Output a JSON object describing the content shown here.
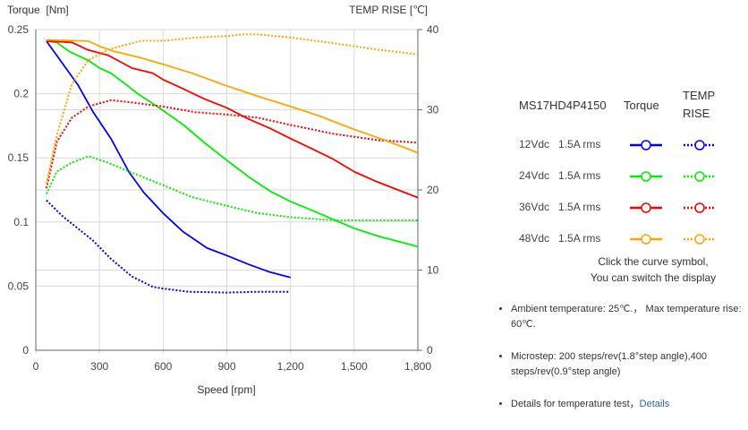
{
  "chart_data": {
    "type": "line",
    "xlabel": "Speed [rpm]",
    "ylabel": "Torque  [Nm]",
    "y2label": "TEMP RISE [℃]",
    "xlim": [
      0,
      1800
    ],
    "ylim": [
      0,
      0.25
    ],
    "y2lim": [
      0,
      40
    ],
    "grid": true,
    "x_ticks": [
      "0",
      "300",
      "600",
      "900",
      "1,200",
      "1,500",
      "1,800"
    ],
    "x_tick_values": [
      0,
      300,
      600,
      900,
      1200,
      1500,
      1800
    ],
    "y_ticks": [
      "0",
      "0.05",
      "0.1",
      "0.15",
      "0.2",
      "0.25"
    ],
    "y_tick_values": [
      0,
      0.05,
      0.1,
      0.15,
      0.2,
      0.25
    ],
    "y2_ticks": [
      "0",
      "10",
      "20",
      "30",
      "40"
    ],
    "y2_tick_values": [
      0,
      10,
      20,
      30,
      40
    ],
    "series": [
      {
        "name": "12Vdc 1.5A rms Torque",
        "axis": "left",
        "style": "solid",
        "color": "#0000ff",
        "x": [
          50,
          198,
          269,
          354,
          439,
          509,
          599,
          693,
          807,
          901,
          1005,
          1104,
          1200
        ],
        "y": [
          0.241,
          0.207,
          0.186,
          0.165,
          0.139,
          0.123,
          0.107,
          0.0925,
          0.0797,
          0.0738,
          0.0668,
          0.0609,
          0.0567
        ]
      },
      {
        "name": "12Vdc 1.5A rms TEMP RISE",
        "axis": "right",
        "style": "dotted",
        "color": "#0000ff",
        "x": [
          50,
          127,
          269,
          354,
          453,
          552,
          599,
          722,
          901,
          1047,
          1196
        ],
        "y": [
          18.7,
          16.7,
          13.7,
          11.4,
          9.2,
          7.9,
          7.7,
          7.3,
          7.2,
          7.3,
          7.3
        ]
      },
      {
        "name": "24Vdc 1.5A rms Torque",
        "axis": "left",
        "style": "solid",
        "color": "#00ee00",
        "x": [
          50,
          99,
          156,
          248,
          300,
          354,
          410,
          481,
          599,
          693,
          793,
          901,
          1005,
          1104,
          1200,
          1302,
          1401,
          1503,
          1613,
          1800
        ],
        "y": [
          0.241,
          0.24,
          0.233,
          0.226,
          0.22,
          0.216,
          0.209,
          0.2,
          0.187,
          0.176,
          0.162,
          0.148,
          0.135,
          0.124,
          0.116,
          0.109,
          0.102,
          0.0949,
          0.089,
          0.0808
        ]
      },
      {
        "name": "24Vdc 1.5A rms TEMP RISE",
        "axis": "right",
        "style": "dotted",
        "color": "#00ee00",
        "x": [
          50,
          99,
          170,
          248,
          340,
          439,
          599,
          736,
          901,
          1047,
          1200,
          1401,
          1800
        ],
        "y": [
          19.5,
          22.3,
          23.4,
          24.2,
          23.4,
          22.3,
          20.6,
          19.1,
          18.0,
          17.1,
          16.6,
          16.2,
          16.2
        ]
      },
      {
        "name": "36Vdc 1.5A rms Torque",
        "axis": "left",
        "style": "solid",
        "color": "#ff0000",
        "x": [
          50,
          170,
          248,
          340,
          453,
          552,
          599,
          693,
          793,
          901,
          1005,
          1104,
          1200,
          1302,
          1401,
          1503,
          1613,
          1800
        ],
        "y": [
          0.241,
          0.24,
          0.234,
          0.23,
          0.22,
          0.216,
          0.211,
          0.204,
          0.196,
          0.189,
          0.18,
          0.173,
          0.165,
          0.157,
          0.149,
          0.139,
          0.131,
          0.119
        ]
      },
      {
        "name": "36Vdc 1.5A rms TEMP RISE",
        "axis": "right",
        "style": "dotted",
        "color": "#ff0000",
        "x": [
          50,
          99,
          170,
          248,
          354,
          453,
          599,
          750,
          901,
          1047,
          1200,
          1401,
          1613,
          1800
        ],
        "y": [
          20.2,
          26.0,
          29.0,
          30.4,
          31.2,
          30.9,
          30.4,
          29.7,
          29.4,
          29.0,
          28.1,
          27.0,
          26.2,
          25.9
        ]
      },
      {
        "name": "48Vdc 1.5A rms Torque",
        "axis": "left",
        "style": "solid",
        "color": "#ffa500",
        "x": [
          50,
          248,
          300,
          368,
          495,
          599,
          736,
          901,
          1047,
          1200,
          1330,
          1503,
          1641,
          1800
        ],
        "y": [
          0.242,
          0.241,
          0.237,
          0.233,
          0.228,
          0.223,
          0.216,
          0.206,
          0.198,
          0.19,
          0.183,
          0.172,
          0.164,
          0.154
        ]
      },
      {
        "name": "48Vdc 1.5A rms TEMP RISE",
        "axis": "right",
        "style": "dotted",
        "color": "#ffa500",
        "x": [
          50,
          99,
          170,
          248,
          340,
          495,
          599,
          760,
          901,
          976,
          1047,
          1200,
          1401,
          1613,
          1800
        ],
        "y": [
          20.8,
          26.8,
          33.2,
          36.2,
          37.5,
          38.6,
          38.6,
          39.0,
          39.2,
          39.4,
          39.4,
          39.0,
          38.3,
          37.5,
          36.9
        ]
      }
    ]
  },
  "legend": {
    "model": "MS17HD4P4150",
    "torque_header": "Torque",
    "temp_header_line1": "TEMP",
    "temp_header_line2": "RISE",
    "rows": [
      {
        "voltage": "12Vdc",
        "current": "1.5A rms",
        "color": "#0000ff"
      },
      {
        "voltage": "24Vdc",
        "current": "1.5A rms",
        "color": "#00ee00"
      },
      {
        "voltage": "36Vdc",
        "current": "1.5A rms",
        "color": "#ff0000"
      },
      {
        "voltage": "48Vdc",
        "current": "1.5A rms",
        "color": "#ffa500"
      }
    ],
    "hint_line1": "Click the curve symbol,",
    "hint_line2": "You can switch the display"
  },
  "notes": {
    "ambient": "Ambient temperature: 25℃.， Max temperature rise: 60℃.",
    "microstep": "Microstep: 200 steps/rev(1.8°step angle),400 steps/rev(0.9°step angle)",
    "details_text": "Details for temperature test，",
    "details_link": "Details"
  }
}
